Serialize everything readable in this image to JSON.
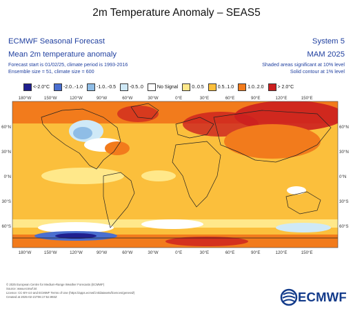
{
  "title": "2m Temperature Anomaly – SEAS5",
  "header": {
    "org": "ECMWF Seasonal Forecast",
    "variable": "Mean 2m temperature anomaly",
    "forecast_info": "Forecast start is 01/02/25, climate period is 1993-2016",
    "ensemble_info": "Ensemble size = 51, climate size = 600",
    "system": "System 5",
    "period": "MAM 2025",
    "shading_note": "Shaded areas significant at 10% level",
    "contour_note": "Solid contour at 1% level"
  },
  "legend": [
    {
      "label": "<-2.0°C",
      "color": "#1f1f8f"
    },
    {
      "label": "-2.0..-1.0",
      "color": "#4a6fd0"
    },
    {
      "label": "-1.0..-0.5",
      "color": "#8fbde6"
    },
    {
      "label": "-0.5..0",
      "color": "#cfe9f7"
    },
    {
      "label": "No Signal",
      "color": "#ffffff"
    },
    {
      "label": "0..0.5",
      "color": "#ffe88a"
    },
    {
      "label": "0.5..1.0",
      "color": "#fbbf3c"
    },
    {
      "label": "1.0..2.0",
      "color": "#f27b1c"
    },
    {
      "label": "> 2.0°C",
      "color": "#cc1f1f"
    }
  ],
  "map": {
    "lon_labels": [
      "180°W",
      "150°W",
      "120°W",
      "90°W",
      "60°W",
      "30°W",
      "0°E",
      "30°E",
      "60°E",
      "90°E",
      "120°E",
      "150°E"
    ],
    "lat_labels": [
      "60°N",
      "30°N",
      "0°N",
      "30°S",
      "60°S"
    ]
  },
  "footer": {
    "line1": "© 2025 European Centre for Medium-Range Weather Forecasts (ECMWF)",
    "line2": "Source: www.ecmwf.int",
    "line3": "Licence: CC-BY-4.0 and ECMWF Terms of Use (https://apps.ecmwf.int/datasets/licences/general/)",
    "line4": "Created at 2025-02-21T06:17:52.993Z"
  },
  "logo": {
    "text": "ECMWF",
    "icon": "ecmwf-logo-icon"
  }
}
